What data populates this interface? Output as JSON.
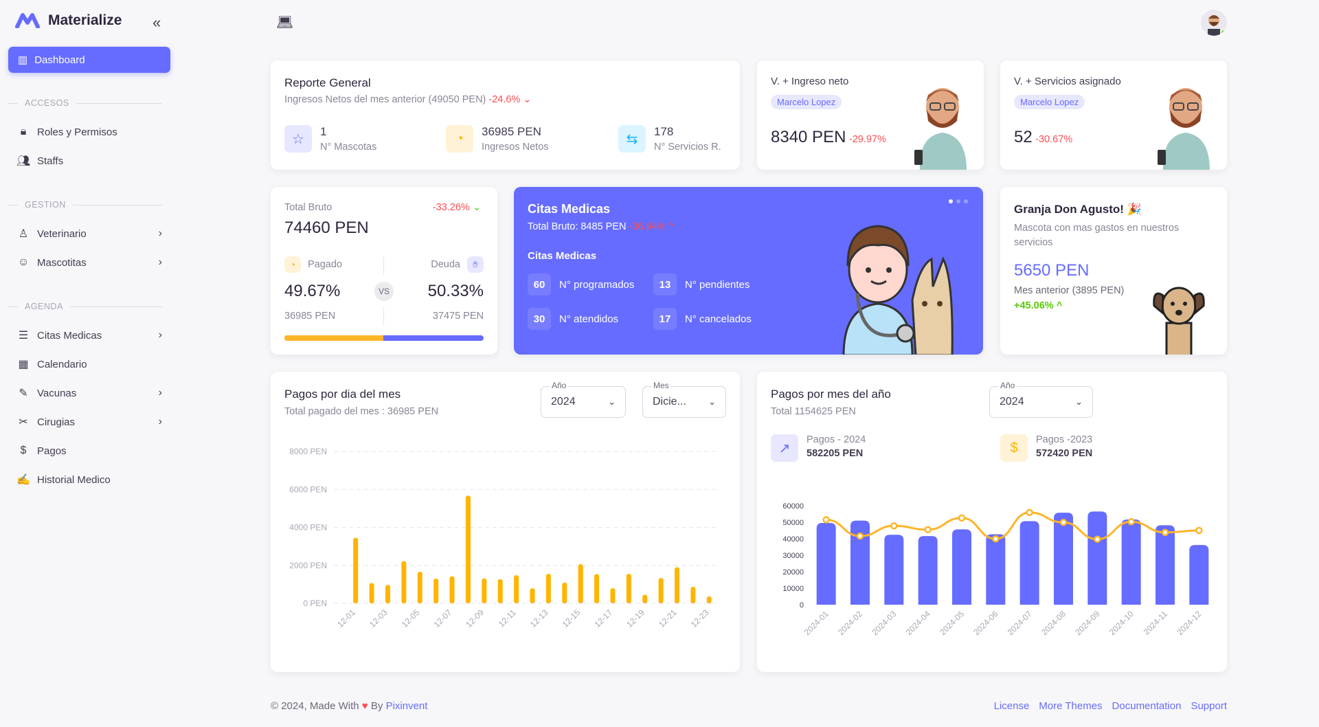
{
  "app": {
    "name": "Materialize"
  },
  "sidebar": {
    "active": {
      "label": "Dashboard",
      "icon": "bar-chart-icon"
    },
    "sections": [
      {
        "title": "ACCESOS",
        "items": [
          {
            "label": "Roles y Permisos",
            "icon": "lock-icon"
          },
          {
            "label": "Staffs",
            "icon": "users-icon"
          }
        ]
      },
      {
        "title": "GESTION",
        "items": [
          {
            "label": "Veterinario",
            "icon": "doctor-icon"
          },
          {
            "label": "Mascotitas",
            "icon": "pet-icon"
          }
        ]
      },
      {
        "title": "AGENDA",
        "items": [
          {
            "label": "Citas Medicas",
            "icon": "list-icon"
          },
          {
            "label": "Calendario",
            "icon": "calendar-icon"
          },
          {
            "label": "Vacunas",
            "icon": "syringe-icon"
          },
          {
            "label": "Cirugias",
            "icon": "surgery-icon"
          },
          {
            "label": "Pagos",
            "icon": "coin-icon"
          },
          {
            "label": "Historial Medico",
            "icon": "record-icon"
          }
        ]
      }
    ]
  },
  "reporte": {
    "title": "Reporte General",
    "subtitle": "Ingresos Netos del mes anterior (49050 PEN)",
    "change": "-24.6%",
    "stats": [
      {
        "value": "1",
        "label": "N° Mascotas",
        "color": "#666cff"
      },
      {
        "value": "36985 PEN",
        "label": "Ingresos Netos",
        "color": "#ffb400"
      },
      {
        "value": "178",
        "label": "N° Servicios R.",
        "color": "#16b1ff"
      }
    ]
  },
  "vet_ingreso": {
    "title": "V. + Ingreso neto",
    "name": "Marcelo Lopez",
    "value": "8340 PEN",
    "change": "-29.97%"
  },
  "vet_servicios": {
    "title": "V. + Servicios asignado",
    "name": "Marcelo Lopez",
    "value": "52",
    "change": "-30.67%"
  },
  "total_bruto": {
    "label": "Total Bruto",
    "value": "74460 PEN",
    "change": "-33.26%",
    "pagado": {
      "label": "Pagado",
      "percent": "49.67%",
      "amount": "36985 PEN"
    },
    "deuda": {
      "label": "Deuda",
      "percent": "50.33%",
      "amount": "37475 PEN"
    },
    "vs": "VS",
    "progress_paid": 49.67
  },
  "citas": {
    "title": "Citas Medicas",
    "total": "Total Bruto: 8485 PEN",
    "change": "-36.94%",
    "subtitle": "Citas Medicas",
    "stats": [
      {
        "value": "60",
        "label": "N° programados"
      },
      {
        "value": "13",
        "label": "N° pendientes"
      },
      {
        "value": "30",
        "label": "N° atendidos"
      },
      {
        "value": "17",
        "label": "N° cancelados"
      }
    ],
    "carousel_active": 1,
    "carousel_count": 3
  },
  "granja": {
    "title": "Granja Don Agusto!",
    "emoji": "🎉",
    "subtitle": "Mascota con mas gastos en nuestros servicios",
    "value": "5650 PEN",
    "previous": "Mes anterior (3895 PEN)",
    "change": "+45.06%"
  },
  "pagos_dia": {
    "title": "Pagos por dia del mes",
    "subtitle": "Total pagado del mes : 36985 PEN",
    "year": {
      "label": "Año",
      "value": "2024"
    },
    "month": {
      "label": "Mes",
      "value": "Dicie..."
    }
  },
  "pagos_mes": {
    "title": "Pagos por mes del año",
    "subtitle": "Total 1154625 PEN",
    "year": {
      "label": "Año",
      "value": "2024"
    },
    "legend": [
      {
        "label": "Pagos - 2024",
        "value": "582205 PEN",
        "color": "#666cff"
      },
      {
        "label": "Pagos -2023",
        "value": "572420 PEN",
        "color": "#ffb400"
      }
    ]
  },
  "chart_data": [
    {
      "type": "bar",
      "categories": [
        "12-01",
        "12-02",
        "12-03",
        "12-04",
        "12-05",
        "12-06",
        "12-07",
        "12-08",
        "12-09",
        "12-10",
        "12-11",
        "12-12",
        "12-13",
        "12-14",
        "12-15",
        "12-16",
        "12-17",
        "12-18",
        "12-19",
        "12-20",
        "12-21",
        "12-22",
        "12-23"
      ],
      "tick_labels": [
        "12-01",
        "12-03",
        "12-05",
        "12-07",
        "12-09",
        "12-11",
        "12-13",
        "12-15",
        "12-17",
        "12-19",
        "12-21",
        "12-23"
      ],
      "values": [
        3450,
        1070,
        970,
        2220,
        1660,
        1300,
        1420,
        5670,
        1310,
        1270,
        1480,
        790,
        1550,
        1090,
        2060,
        1540,
        790,
        1550,
        450,
        1330,
        1900,
        870,
        360
      ],
      "yticks": [
        "0 PEN",
        "2000 PEN",
        "4000 PEN",
        "6000 PEN",
        "8000 PEN"
      ],
      "ylim": [
        0,
        8000
      ],
      "grid": true,
      "color": "#ffb400"
    },
    {
      "type": "bar",
      "categories": [
        "2024-01",
        "2024-02",
        "2024-03",
        "2024-04",
        "2024-05",
        "2024-06",
        "2024-07",
        "2024-08",
        "2024-09",
        "2024-10",
        "2024-11",
        "2024-12"
      ],
      "series": [
        {
          "type": "bar",
          "color": "#666cff",
          "values": [
            49600,
            51000,
            42400,
            41600,
            45700,
            42700,
            50700,
            55800,
            56500,
            51650,
            48200,
            36200
          ]
        },
        {
          "type": "line",
          "color": "#fdb528",
          "values": [
            51500,
            41600,
            47800,
            45500,
            52600,
            39900,
            55900,
            49900,
            39700,
            50300,
            43800,
            45000
          ]
        }
      ],
      "yticks": [
        "0",
        "10000",
        "20000",
        "30000",
        "40000",
        "50000",
        "60000"
      ],
      "ylim": [
        0,
        60000
      ],
      "grid": false
    }
  ],
  "footer": {
    "copyright": "© 2024, Made With",
    "by": "By",
    "brand": "Pixinvent",
    "links": [
      "License",
      "More Themes",
      "Documentation",
      "Support"
    ]
  }
}
